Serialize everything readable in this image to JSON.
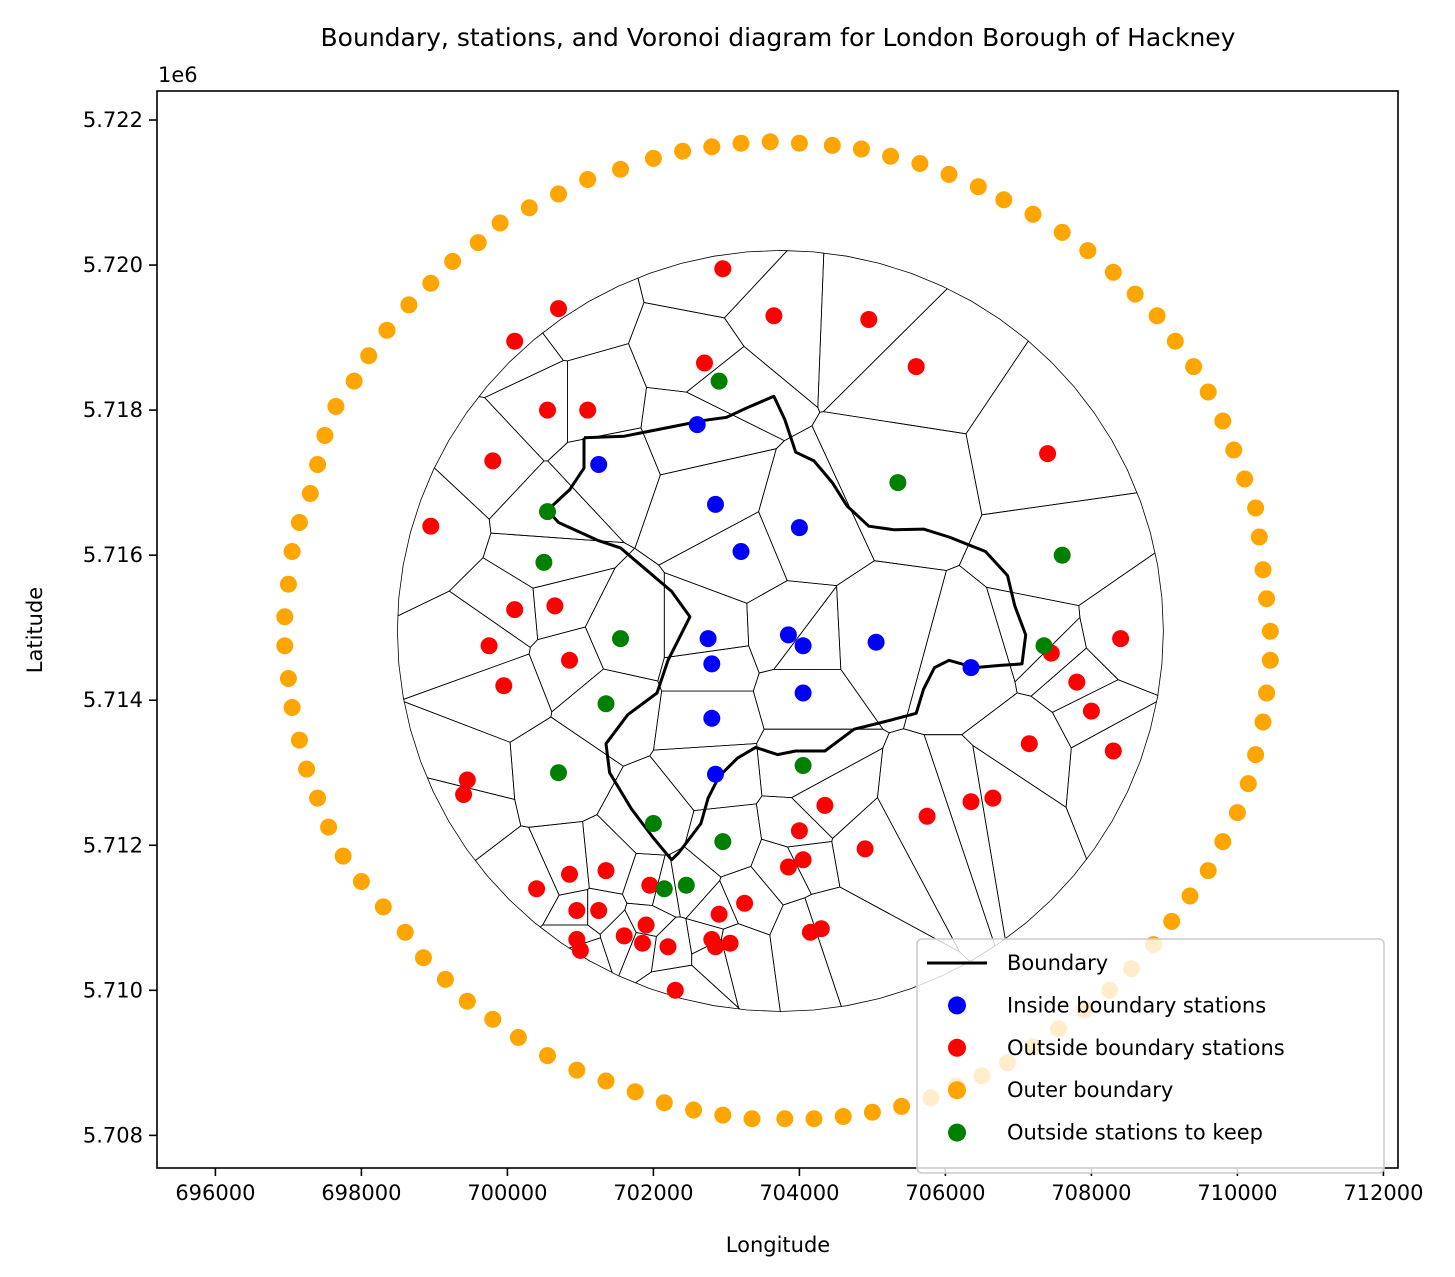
{
  "chart_data": {
    "type": "scatter",
    "title": "Boundary, stations, and Voronoi diagram for London Borough of Hackney",
    "xlabel": "Longitude",
    "ylabel": "Latitude",
    "y_offset_label": "1e6",
    "xlim": [
      695200,
      712200
    ],
    "ylim": [
      5707550,
      5722400
    ],
    "x_ticks": [
      696000,
      698000,
      700000,
      702000,
      704000,
      706000,
      708000,
      710000,
      712000
    ],
    "x_tick_labels": [
      "696000",
      "698000",
      "700000",
      "702000",
      "704000",
      "706000",
      "708000",
      "710000",
      "712000"
    ],
    "y_ticks": [
      5708000,
      5710000,
      5712000,
      5714000,
      5716000,
      5718000,
      5720000,
      5722000
    ],
    "y_tick_labels": [
      "5.708",
      "5.710",
      "5.712",
      "5.714",
      "5.716",
      "5.718",
      "5.720",
      "5.722"
    ],
    "grid": false,
    "legend_position": "lower right",
    "legend": [
      {
        "label": "Boundary",
        "kind": "line",
        "color": "#000000"
      },
      {
        "label": "Inside boundary stations",
        "kind": "marker",
        "color": "#0000ff"
      },
      {
        "label": "Outside boundary stations",
        "kind": "marker",
        "color": "#ff0000"
      },
      {
        "label": "Outer boundary",
        "kind": "marker",
        "color": "#ffa500"
      },
      {
        "label": "Outside stations to keep",
        "kind": "marker",
        "color": "#008000"
      }
    ],
    "boundary": [
      [
        701050,
        5717620
      ],
      [
        701600,
        5717640
      ],
      [
        701900,
        5717700
      ],
      [
        702300,
        5717780
      ],
      [
        702700,
        5717860
      ],
      [
        703000,
        5717900
      ],
      [
        703300,
        5718040
      ],
      [
        703650,
        5718190
      ],
      [
        703800,
        5717870
      ],
      [
        703950,
        5717420
      ],
      [
        704200,
        5717300
      ],
      [
        704450,
        5717000
      ],
      [
        704650,
        5716680
      ],
      [
        704950,
        5716400
      ],
      [
        705300,
        5716350
      ],
      [
        705700,
        5716360
      ],
      [
        706050,
        5716250
      ],
      [
        706550,
        5716050
      ],
      [
        706850,
        5715720
      ],
      [
        706950,
        5715300
      ],
      [
        707100,
        5714900
      ],
      [
        707050,
        5714500
      ],
      [
        706750,
        5714480
      ],
      [
        706400,
        5714450
      ],
      [
        706050,
        5714550
      ],
      [
        705850,
        5714450
      ],
      [
        705700,
        5714150
      ],
      [
        705600,
        5713820
      ],
      [
        705150,
        5713700
      ],
      [
        704750,
        5713600
      ],
      [
        704350,
        5713300
      ],
      [
        703950,
        5713300
      ],
      [
        703700,
        5713250
      ],
      [
        703400,
        5713350
      ],
      [
        703150,
        5713200
      ],
      [
        702900,
        5712950
      ],
      [
        702750,
        5712650
      ],
      [
        702650,
        5712300
      ],
      [
        702350,
        5711900
      ],
      [
        702250,
        5711800
      ],
      [
        702000,
        5712100
      ],
      [
        701700,
        5712500
      ],
      [
        701400,
        5713000
      ],
      [
        701350,
        5713400
      ],
      [
        701650,
        5713800
      ],
      [
        702050,
        5714100
      ],
      [
        702200,
        5714550
      ],
      [
        702350,
        5714850
      ],
      [
        702500,
        5715150
      ],
      [
        702250,
        5715500
      ],
      [
        701900,
        5715800
      ],
      [
        701550,
        5716100
      ],
      [
        701250,
        5716200
      ],
      [
        700700,
        5716450
      ],
      [
        700550,
        5716620
      ],
      [
        700850,
        5716900
      ],
      [
        701050,
        5717200
      ],
      [
        701050,
        5717620
      ]
    ],
    "series": [
      {
        "name": "Inside boundary stations",
        "color": "#0000ff",
        "points": [
          [
            701250,
            5717250
          ],
          [
            702600,
            5717800
          ],
          [
            702850,
            5716700
          ],
          [
            703200,
            5716050
          ],
          [
            704000,
            5716380
          ],
          [
            703850,
            5714900
          ],
          [
            704050,
            5714750
          ],
          [
            705050,
            5714800
          ],
          [
            702750,
            5714850
          ],
          [
            702800,
            5714500
          ],
          [
            702800,
            5713750
          ],
          [
            704050,
            5714100
          ],
          [
            702850,
            5712980
          ],
          [
            706350,
            5714450
          ]
        ]
      },
      {
        "name": "Outside boundary stations",
        "color": "#ff0000",
        "points": [
          [
            700100,
            5718950
          ],
          [
            700700,
            5719400
          ],
          [
            702950,
            5719950
          ],
          [
            703650,
            5719300
          ],
          [
            704950,
            5719250
          ],
          [
            705600,
            5718600
          ],
          [
            702700,
            5718650
          ],
          [
            700550,
            5718000
          ],
          [
            701100,
            5718000
          ],
          [
            699800,
            5717300
          ],
          [
            698950,
            5716400
          ],
          [
            707400,
            5717400
          ],
          [
            700100,
            5715250
          ],
          [
            700650,
            5715300
          ],
          [
            699750,
            5714750
          ],
          [
            700850,
            5714550
          ],
          [
            699950,
            5714200
          ],
          [
            708400,
            5714850
          ],
          [
            707450,
            5714650
          ],
          [
            707800,
            5714250
          ],
          [
            708000,
            5713850
          ],
          [
            707150,
            5713400
          ],
          [
            708300,
            5713300
          ],
          [
            699450,
            5712900
          ],
          [
            699400,
            5712700
          ],
          [
            704350,
            5712550
          ],
          [
            705750,
            5712400
          ],
          [
            706350,
            5712600
          ],
          [
            706650,
            5712650
          ],
          [
            704000,
            5712200
          ],
          [
            704900,
            5711950
          ],
          [
            703850,
            5711700
          ],
          [
            704050,
            5711800
          ],
          [
            700400,
            5711400
          ],
          [
            700850,
            5711600
          ],
          [
            701350,
            5711650
          ],
          [
            700950,
            5711100
          ],
          [
            701250,
            5711100
          ],
          [
            701950,
            5711450
          ],
          [
            702900,
            5711050
          ],
          [
            703250,
            5711200
          ],
          [
            701900,
            5710900
          ],
          [
            704300,
            5710850
          ],
          [
            704150,
            5710800
          ],
          [
            700950,
            5710700
          ],
          [
            701000,
            5710550
          ],
          [
            701600,
            5710750
          ],
          [
            701850,
            5710650
          ],
          [
            702200,
            5710600
          ],
          [
            702800,
            5710700
          ],
          [
            702850,
            5710600
          ],
          [
            703050,
            5710650
          ],
          [
            702300,
            5710000
          ]
        ]
      },
      {
        "name": "Outer boundary",
        "color": "#ffa500",
        "points": [
          [
            703600,
            5721700
          ],
          [
            703200,
            5721680
          ],
          [
            702800,
            5721630
          ],
          [
            702400,
            5721570
          ],
          [
            702000,
            5721470
          ],
          [
            701550,
            5721320
          ],
          [
            701100,
            5721180
          ],
          [
            700700,
            5720980
          ],
          [
            700300,
            5720790
          ],
          [
            699900,
            5720580
          ],
          [
            699600,
            5720310
          ],
          [
            699250,
            5720050
          ],
          [
            698950,
            5719750
          ],
          [
            698650,
            5719450
          ],
          [
            698350,
            5719100
          ],
          [
            698100,
            5718750
          ],
          [
            697900,
            5718400
          ],
          [
            697650,
            5718050
          ],
          [
            697500,
            5717650
          ],
          [
            697400,
            5717250
          ],
          [
            697300,
            5716850
          ],
          [
            697150,
            5716450
          ],
          [
            697050,
            5716050
          ],
          [
            697000,
            5715600
          ],
          [
            696950,
            5715150
          ],
          [
            696950,
            5714750
          ],
          [
            697000,
            5714300
          ],
          [
            697050,
            5713900
          ],
          [
            697150,
            5713450
          ],
          [
            697250,
            5713050
          ],
          [
            697400,
            5712650
          ],
          [
            697550,
            5712250
          ],
          [
            697750,
            5711850
          ],
          [
            698000,
            5711500
          ],
          [
            698300,
            5711150
          ],
          [
            698600,
            5710800
          ],
          [
            698850,
            5710450
          ],
          [
            699150,
            5710150
          ],
          [
            699450,
            5709850
          ],
          [
            699800,
            5709600
          ],
          [
            700150,
            5709350
          ],
          [
            700550,
            5709100
          ],
          [
            700950,
            5708900
          ],
          [
            701350,
            5708750
          ],
          [
            701750,
            5708600
          ],
          [
            702150,
            5708450
          ],
          [
            702550,
            5708350
          ],
          [
            702950,
            5708280
          ],
          [
            703350,
            5708230
          ],
          [
            703800,
            5708230
          ],
          [
            704200,
            5708230
          ],
          [
            704600,
            5708260
          ],
          [
            705000,
            5708320
          ],
          [
            705400,
            5708400
          ],
          [
            705800,
            5708520
          ],
          [
            706150,
            5708680
          ],
          [
            706500,
            5708820
          ],
          [
            706850,
            5709000
          ],
          [
            707200,
            5709220
          ],
          [
            707550,
            5709470
          ],
          [
            707900,
            5709730
          ],
          [
            708250,
            5710000
          ],
          [
            708550,
            5710300
          ],
          [
            708850,
            5710630
          ],
          [
            709100,
            5710950
          ],
          [
            709350,
            5711300
          ],
          [
            709600,
            5711650
          ],
          [
            709800,
            5712050
          ],
          [
            710000,
            5712450
          ],
          [
            710150,
            5712850
          ],
          [
            710250,
            5713250
          ],
          [
            710350,
            5713700
          ],
          [
            710400,
            5714100
          ],
          [
            710450,
            5714550
          ],
          [
            710450,
            5714950
          ],
          [
            710400,
            5715400
          ],
          [
            710350,
            5715800
          ],
          [
            710300,
            5716250
          ],
          [
            710250,
            5716650
          ],
          [
            710100,
            5717050
          ],
          [
            709950,
            5717450
          ],
          [
            709800,
            5717850
          ],
          [
            709600,
            5718250
          ],
          [
            709400,
            5718600
          ],
          [
            709150,
            5718950
          ],
          [
            708900,
            5719300
          ],
          [
            708600,
            5719600
          ],
          [
            708300,
            5719900
          ],
          [
            707950,
            5720200
          ],
          [
            707600,
            5720450
          ],
          [
            707200,
            5720700
          ],
          [
            706800,
            5720900
          ],
          [
            706450,
            5721080
          ],
          [
            706050,
            5721250
          ],
          [
            705650,
            5721400
          ],
          [
            705250,
            5721500
          ],
          [
            704850,
            5721600
          ],
          [
            704450,
            5721650
          ],
          [
            704000,
            5721680
          ]
        ]
      },
      {
        "name": "Outside stations to keep",
        "color": "#008000",
        "points": [
          [
            702900,
            5718400
          ],
          [
            700550,
            5716600
          ],
          [
            700500,
            5715900
          ],
          [
            705350,
            5717000
          ],
          [
            707600,
            5716000
          ],
          [
            701550,
            5714850
          ],
          [
            707350,
            5714750
          ],
          [
            701350,
            5713950
          ],
          [
            700700,
            5713000
          ],
          [
            704050,
            5713100
          ],
          [
            702000,
            5712300
          ],
          [
            702950,
            5712050
          ],
          [
            702150,
            5711400
          ],
          [
            702450,
            5711450
          ]
        ]
      }
    ]
  }
}
